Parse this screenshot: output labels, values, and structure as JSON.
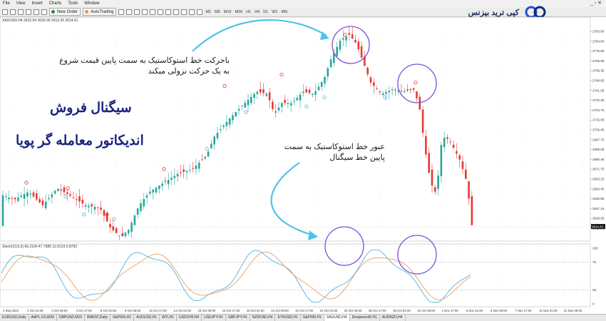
{
  "menu": [
    "File",
    "View",
    "Insert",
    "Charts",
    "Tools",
    "Window"
  ],
  "toolbar": {
    "new_order": "New Order",
    "autotrading": "AutoTrading",
    "timeframes": [
      "M1",
      "M5",
      "M15",
      "M30",
      "H1",
      "H4",
      "D1",
      "W1",
      "MN"
    ]
  },
  "logo": {
    "text": "کپی ترید بیزنس",
    "icon": "copy-trade-link-logo-icon"
  },
  "chart": {
    "symbol_info": "XAUUSD,H4  2622.04 2626.00 2613.25 2614.41",
    "indicator_info": "Stoch(13,5,5) 66.2100 47.7985 12.8123 5.8793",
    "price_labels": [
      "2793.00",
      "2784.60",
      "2775.90",
      "2766.95",
      "2758.35",
      "2749.65",
      "2741.05",
      "2732.35",
      "2723.75",
      "2715.05",
      "2706.45",
      "2697.75",
      "2689.05",
      "2680.45",
      "2671.75",
      "2663.15",
      "2654.45",
      "2645.85",
      "2637.15",
      "2628.55",
      "2619.85"
    ],
    "osc_labels": [
      "100",
      "75",
      "25",
      "0"
    ],
    "time_labels": [
      "4 Sep 2024",
      "2 Oct 01:00",
      "3 Oct 09:00",
      "4 Oct 17:00",
      "8 Oct 01:00",
      "9 Oct 09:00",
      "10 Oct 17:00",
      "14 Oct 01:00",
      "15 Oct 09:00",
      "16 Oct 17:00",
      "18 Oct 01:00",
      "21 Oct 09:00",
      "22 Oct 17:00",
      "24 Oct 01:00",
      "25 Oct 09:00",
      "28 Oct 17:00",
      "30 Oct 01:00",
      "31 Oct 09:00",
      "1 Nov 17:00",
      "5 Nov 01:00",
      "6 Nov 09:00",
      "7 Nov 17:00",
      "11 Nov 01:00",
      "12 Nov 09:00"
    ],
    "current_price": "2614.41",
    "colors": {
      "bull": "#26a69a",
      "bear": "#e53935",
      "stoch_main": "#4fb3e0",
      "stoch_signal": "#e8a060",
      "circle": "#7b4fd8",
      "arrow": "#4fc3e8"
    }
  },
  "annotations": {
    "note_top": "باحرکت خط استوکاستیک به سمت پایین قیمت شروع به یک حرکت نزولی میکند",
    "note_mid": "عبور خط استوکاستیک به سمت پایین خط سیگنال",
    "title_line1": "سیگنال فروش",
    "title_line2": "اندیکاتور معامله گر پویا"
  },
  "tabs": [
    "EURUSD,Daily",
    "AAPL.US,M30",
    "GBPUSD,M15",
    "BRENT,Daily",
    "S&P500,H1",
    "AUDUSD,H1",
    "WTI,H1",
    "USDCHF,H4",
    "USDJPY,H1",
    "GBPJPY,H1",
    "NZDCAD,H4",
    "ETHUSD,H1",
    "S&P500,H1",
    "XAUUSD,H4",
    "Dowjones30,H1",
    "AUDNZD,H4"
  ],
  "active_tab_index": 13
}
